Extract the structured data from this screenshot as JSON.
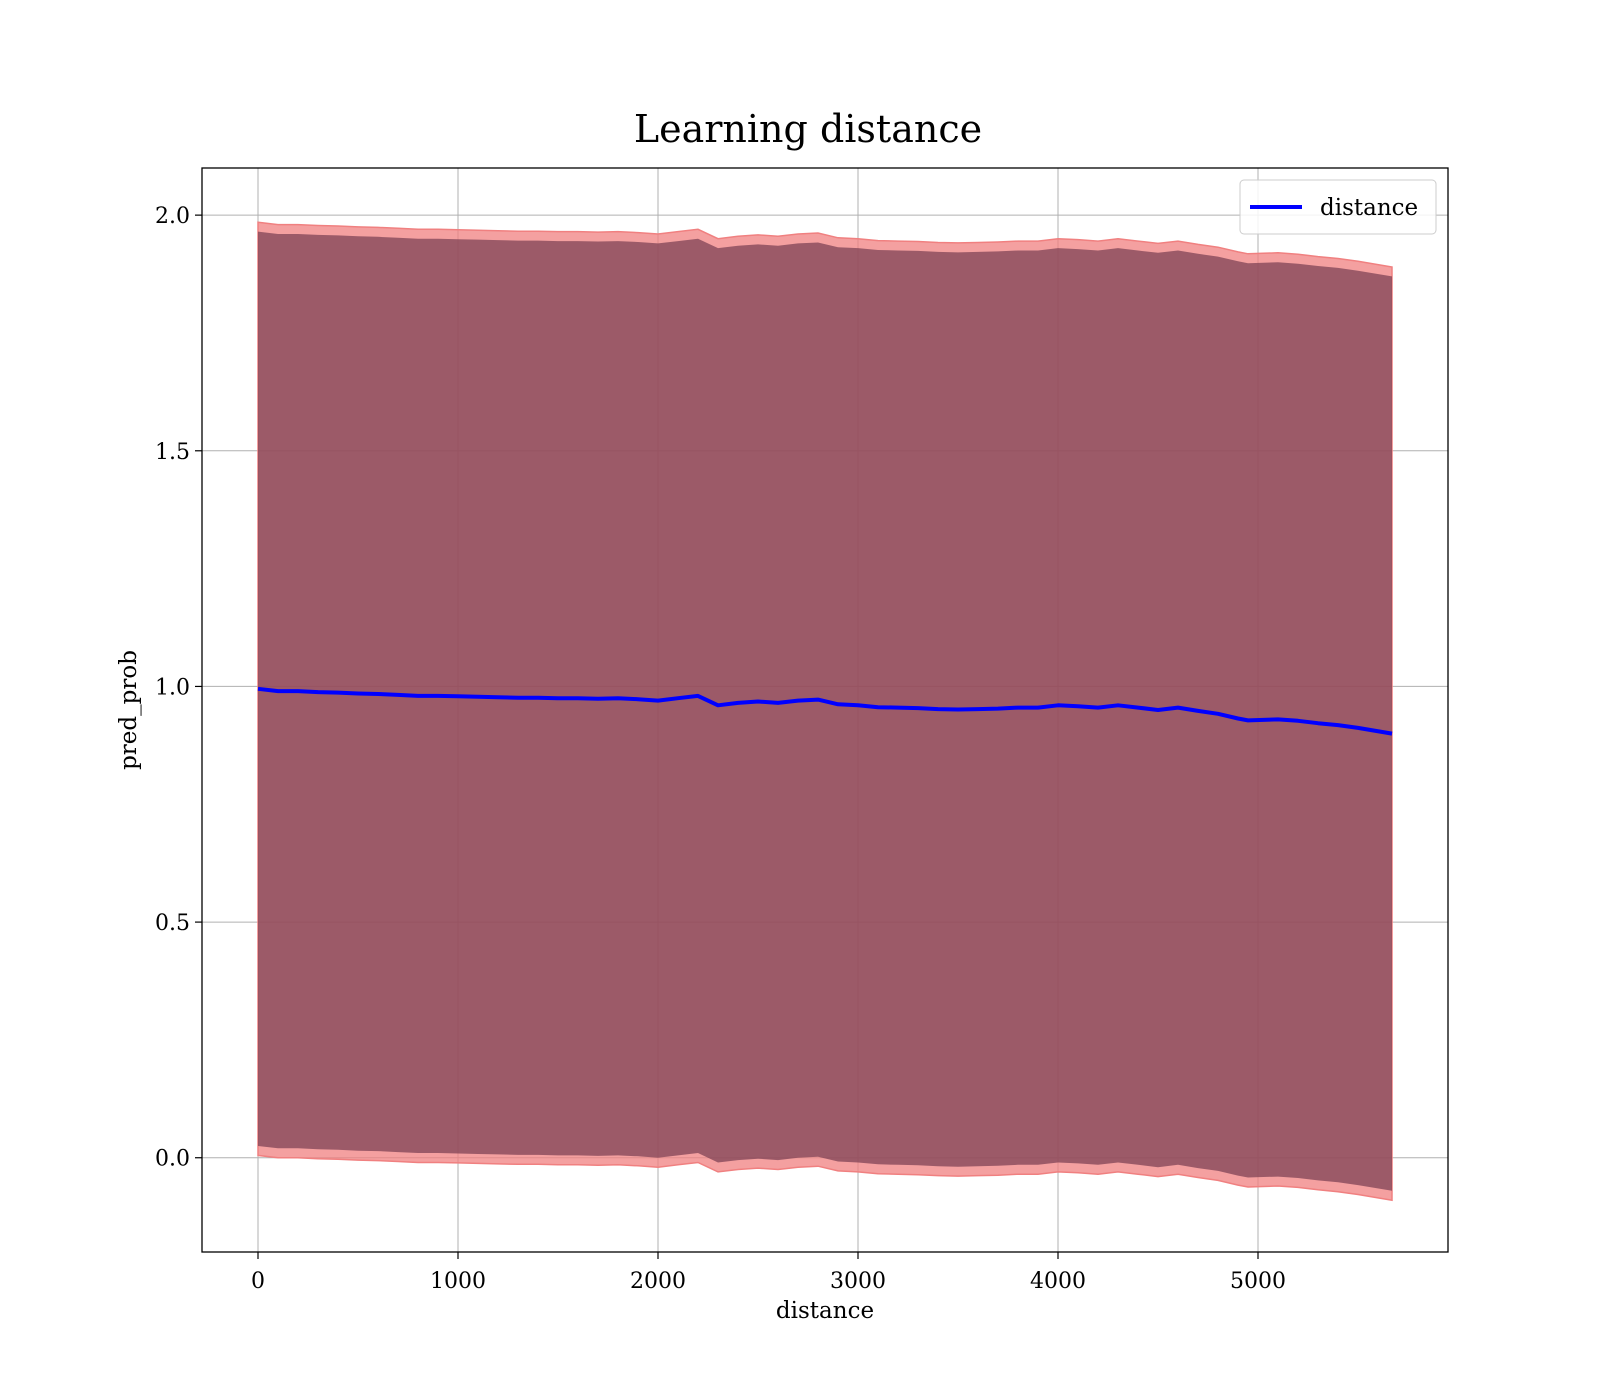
{
  "chart_data": {
    "type": "line",
    "title": "Learning distance",
    "xlabel": "distance",
    "ylabel": "pred_prob",
    "xlim": [
      -280,
      5950
    ],
    "ylim": [
      -0.2,
      2.1
    ],
    "xticks": [
      0,
      1000,
      2000,
      3000,
      4000,
      5000
    ],
    "yticks": [
      0.0,
      0.5,
      1.0,
      1.5,
      2.0
    ],
    "xtick_labels": [
      "0",
      "1000",
      "2000",
      "3000",
      "4000",
      "5000"
    ],
    "ytick_labels": [
      "0.0",
      "0.5",
      "1.0",
      "1.5",
      "2.0"
    ],
    "grid": true,
    "legend_position": "top-right",
    "band_color_outer": "#f08080",
    "band_color_inner": "#7a3f52",
    "line_color": "#0000ff",
    "series": [
      {
        "name": "distance",
        "x": [
          0,
          100,
          200,
          300,
          400,
          500,
          600,
          700,
          800,
          900,
          1000,
          1100,
          1200,
          1300,
          1400,
          1500,
          1600,
          1700,
          1800,
          1900,
          2000,
          2100,
          2200,
          2300,
          2400,
          2500,
          2600,
          2700,
          2800,
          2900,
          3000,
          3100,
          3200,
          3300,
          3400,
          3500,
          3600,
          3700,
          3800,
          3900,
          4000,
          4100,
          4200,
          4300,
          4400,
          4500,
          4600,
          4700,
          4800,
          4900,
          4950,
          5100,
          5200,
          5300,
          5400,
          5500,
          5670
        ],
        "y": [
          0.995,
          0.99,
          0.99,
          0.988,
          0.987,
          0.985,
          0.984,
          0.982,
          0.98,
          0.98,
          0.979,
          0.978,
          0.977,
          0.976,
          0.976,
          0.975,
          0.975,
          0.974,
          0.975,
          0.973,
          0.97,
          0.975,
          0.98,
          0.96,
          0.965,
          0.968,
          0.965,
          0.97,
          0.972,
          0.962,
          0.96,
          0.956,
          0.955,
          0.954,
          0.952,
          0.951,
          0.952,
          0.953,
          0.955,
          0.955,
          0.96,
          0.958,
          0.955,
          0.96,
          0.955,
          0.95,
          0.955,
          0.948,
          0.942,
          0.932,
          0.928,
          0.93,
          0.927,
          0.922,
          0.918,
          0.912,
          0.9
        ]
      }
    ],
    "band_halfwidth": {
      "x": [
        0,
        1000,
        2000,
        2300,
        3000,
        4000,
        4500,
        5000,
        5670
      ],
      "outer": [
        0.99,
        0.99,
        0.99,
        0.99,
        0.99,
        0.99,
        0.99,
        0.99,
        0.99
      ],
      "inner": [
        0.97,
        0.97,
        0.97,
        0.97,
        0.97,
        0.97,
        0.97,
        0.97,
        0.97
      ]
    }
  }
}
